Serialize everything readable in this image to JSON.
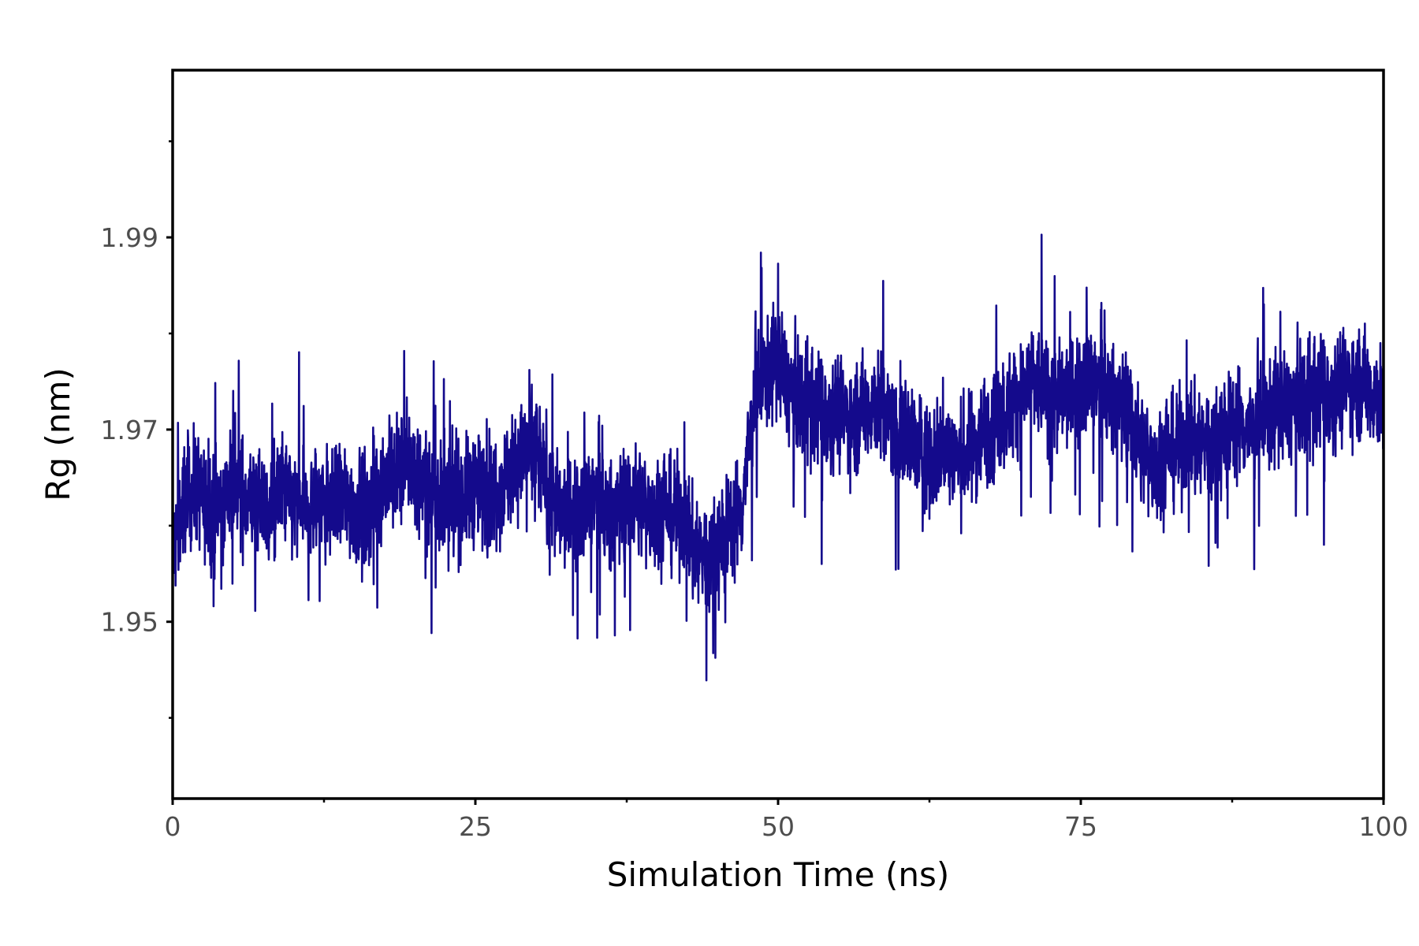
{
  "chart_data": {
    "type": "line",
    "title": "",
    "xlabel": "Simulation Time (ns)",
    "ylabel": "Rg (nm)",
    "xlim": [
      0,
      100
    ],
    "ylim": [
      1.9316,
      2.0074
    ],
    "x_ticks": [
      0,
      25,
      50,
      75,
      100
    ],
    "x_tick_labels": [
      "0",
      "25",
      "50",
      "75",
      "100"
    ],
    "x_minor_ticks": [
      12.5,
      37.5,
      62.5,
      87.5
    ],
    "y_ticks": [
      1.95,
      1.97,
      1.99
    ],
    "y_tick_labels": [
      "1.95",
      "1.97",
      "1.99"
    ],
    "y_minor_ticks": [
      1.94,
      1.96,
      1.98,
      2.0
    ],
    "grid": false,
    "legend": "none",
    "line_color": "#140a8c",
    "series": [
      {
        "x": [
          0,
          1,
          2,
          3,
          4,
          5,
          6,
          7,
          8,
          9,
          10,
          11,
          12,
          13,
          14,
          15,
          16,
          17,
          18,
          19,
          20,
          21,
          22,
          23,
          24,
          25,
          26,
          27,
          28,
          29,
          30,
          31,
          32,
          33,
          34,
          35,
          36,
          37,
          38,
          39,
          40,
          41,
          42,
          43,
          44,
          45,
          46,
          47,
          48,
          49,
          50,
          51,
          52,
          53,
          54,
          55,
          56,
          57,
          58,
          59,
          60,
          61,
          62,
          63,
          64,
          65,
          66,
          67,
          68,
          69,
          70,
          71,
          72,
          73,
          74,
          75,
          76,
          77,
          78,
          79,
          80,
          81,
          82,
          83,
          84,
          85,
          86,
          87,
          88,
          89,
          90,
          91,
          92,
          93,
          94,
          95,
          96,
          97,
          98,
          99,
          100
        ],
        "y": [
          1.957,
          1.963,
          1.964,
          1.961,
          1.962,
          1.965,
          1.963,
          1.962,
          1.961,
          1.964,
          1.962,
          1.961,
          1.963,
          1.962,
          1.963,
          1.962,
          1.961,
          1.964,
          1.965,
          1.966,
          1.966,
          1.964,
          1.963,
          1.962,
          1.963,
          1.964,
          1.963,
          1.964,
          1.966,
          1.967,
          1.968,
          1.964,
          1.961,
          1.962,
          1.962,
          1.963,
          1.961,
          1.962,
          1.963,
          1.962,
          1.962,
          1.961,
          1.961,
          1.958,
          1.957,
          1.958,
          1.96,
          1.962,
          1.973,
          1.976,
          1.977,
          1.974,
          1.973,
          1.972,
          1.972,
          1.972,
          1.971,
          1.972,
          1.973,
          1.971,
          1.97,
          1.969,
          1.967,
          1.967,
          1.968,
          1.967,
          1.968,
          1.97,
          1.971,
          1.972,
          1.974,
          1.975,
          1.974,
          1.973,
          1.974,
          1.975,
          1.975,
          1.974,
          1.973,
          1.972,
          1.968,
          1.967,
          1.967,
          1.968,
          1.969,
          1.969,
          1.969,
          1.97,
          1.971,
          1.97,
          1.971,
          1.972,
          1.972,
          1.973,
          1.973,
          1.974,
          1.974,
          1.975,
          1.975,
          1.974,
          1.973
        ]
      }
    ]
  }
}
